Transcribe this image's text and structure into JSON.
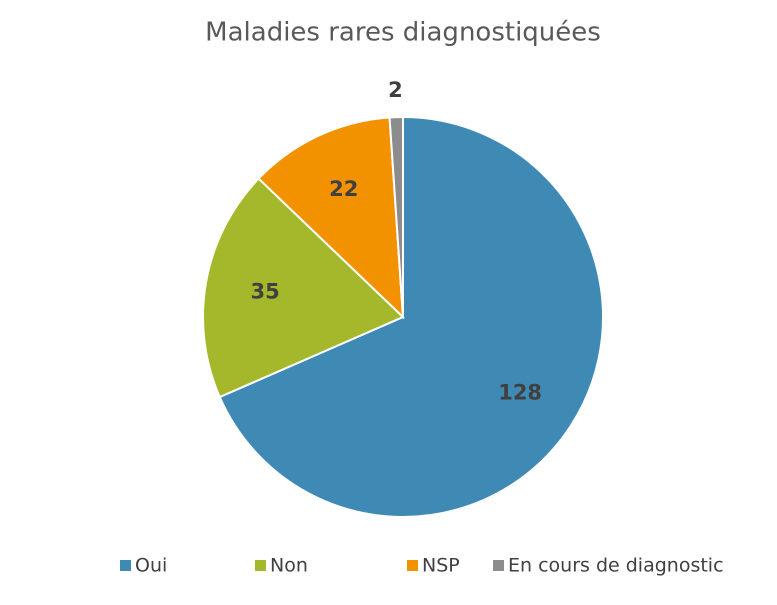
{
  "chart_data": {
    "type": "pie",
    "title": "Maladies rares diagnostiquées",
    "categories": [
      "Oui",
      "Non",
      "NSP",
      "En cours de diagnostic"
    ],
    "values": [
      128,
      35,
      22,
      2
    ],
    "colors": [
      "#3f8ab5",
      "#a5b82b",
      "#f39200",
      "#8c8c8c"
    ],
    "legend": "bottom"
  }
}
